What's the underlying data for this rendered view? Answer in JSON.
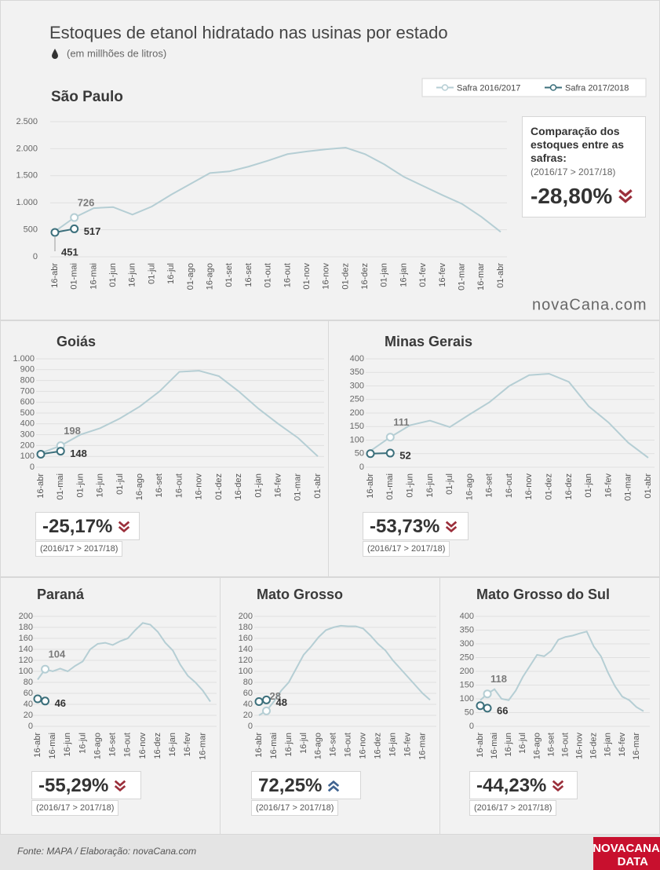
{
  "title": "Estoques de etanol hidratado nas usinas por estado",
  "subtitle": "(em millhões de litros)",
  "brand": "novaCana.com",
  "source": "Fonte: MAPA  / Elaboração: novaCana.com",
  "logo": {
    "top": "NOVACANA",
    "bottom": "DATA"
  },
  "chart_data": [
    {
      "type": "line",
      "title": "São Paulo",
      "legend": "upper right",
      "categories": [
        "16-abr",
        "01-mai",
        "16-mai",
        "01-jun",
        "16-jun",
        "01-jul",
        "16-jul",
        "01-ago",
        "16-ago",
        "01-set",
        "16-set",
        "01-out",
        "16-out",
        "01-nov",
        "16-nov",
        "01-dez",
        "16-dez",
        "01-jan",
        "16-jan",
        "01-fev",
        "16-fev",
        "01-mar",
        "16-mar",
        "01-abr"
      ],
      "series": [
        {
          "name": "Safra 2016/2017",
          "color": "#b5ced4",
          "labeled_points": [
            1
          ],
          "values": [
            470,
            726,
            900,
            920,
            780,
            930,
            1150,
            1350,
            1550,
            1580,
            1670,
            1780,
            1900,
            1950,
            1990,
            2020,
            1900,
            1710,
            1480,
            1310,
            1140,
            980,
            740,
            460
          ]
        },
        {
          "name": "Safra 2017/2018",
          "color": "#3b6f7b",
          "labeled_points": [
            0,
            1
          ],
          "values": [
            451,
            517,
            null,
            null,
            null,
            null,
            null,
            null,
            null,
            null,
            null,
            null,
            null,
            null,
            null,
            null,
            null,
            null,
            null,
            null,
            null,
            null,
            null,
            null
          ]
        }
      ],
      "ylim": [
        0,
        2500
      ],
      "yticks": [
        0,
        500,
        {
          "value": 1000,
          "label": "1.000"
        },
        {
          "value": 1500,
          "label": "1.500"
        },
        {
          "value": 2000,
          "label": "2.000"
        },
        {
          "value": 2500,
          "label": "2.500"
        }
      ],
      "grid": true,
      "change_title": "Comparação dos estoques entre as safras:",
      "change_note": "(2016/17 > 2017/18)",
      "change": {
        "value": -28.8,
        "label": "-28,80%"
      }
    },
    {
      "type": "line",
      "title": "Goiás",
      "categories": [
        "16-abr",
        "01-mai",
        "01-jun",
        "16-jun",
        "01-jul",
        "16-ago",
        "16-set",
        "16-out",
        "16-nov",
        "01-dez",
        "16-dez",
        "01-jan",
        "16-fev",
        "01-mar",
        "01-abr"
      ],
      "series": [
        {
          "color": "#b5ced4",
          "labeled_points": [
            1
          ],
          "values": [
            130,
            198,
            300,
            360,
            450,
            560,
            700,
            880,
            890,
            840,
            700,
            540,
            400,
            270,
            100
          ]
        },
        {
          "color": "#3b6f7b",
          "labeled_points": [
            0,
            1
          ],
          "values": [
            120,
            148,
            null,
            null,
            null,
            null,
            null,
            null,
            null,
            null,
            null,
            null,
            null,
            null,
            null
          ]
        }
      ],
      "ylim": [
        0,
        1000
      ],
      "yticks": [
        0,
        100,
        200,
        300,
        400,
        500,
        600,
        700,
        800,
        900,
        {
          "value": 1000,
          "label": "1.000"
        }
      ],
      "grid": true,
      "change_note": "(2016/17 > 2017/18)",
      "change": {
        "value": -25.17,
        "label": "-25,17%"
      }
    },
    {
      "type": "line",
      "title": "Minas Gerais",
      "categories": [
        "16-abr",
        "01-mai",
        "01-jun",
        "16-jun",
        "01-jul",
        "16-ago",
        "16-set",
        "16-out",
        "16-nov",
        "01-dez",
        "16-dez",
        "01-jan",
        "16-fev",
        "01-mar",
        "01-abr"
      ],
      "series": [
        {
          "color": "#b5ced4",
          "labeled_points": [
            1
          ],
          "values": [
            60,
            111,
            155,
            172,
            148,
            195,
            240,
            300,
            340,
            345,
            315,
            225,
            165,
            90,
            35
          ]
        },
        {
          "color": "#3b6f7b",
          "labeled_points": [
            0,
            1
          ],
          "values": [
            50,
            52,
            null,
            null,
            null,
            null,
            null,
            null,
            null,
            null,
            null,
            null,
            null,
            null,
            null
          ]
        }
      ],
      "ylim": [
        0,
        400
      ],
      "yticks": [
        0,
        50,
        100,
        150,
        200,
        250,
        300,
        350,
        400
      ],
      "grid": true,
      "change_note": "(2016/17 > 2017/18)",
      "change": {
        "value": -53.73,
        "label": "-53,73%"
      }
    },
    {
      "type": "line",
      "title": "Paraná",
      "categories": [
        "16-abr",
        null,
        "16-mai",
        null,
        "16-jun",
        null,
        "16-jul",
        null,
        "16-ago",
        null,
        "16-set",
        null,
        "16-out",
        null,
        "16-nov",
        null,
        "16-dez",
        null,
        "16-jan",
        null,
        "16-fev",
        null,
        "16-mar",
        null
      ],
      "series": [
        {
          "color": "#b5ced4",
          "labeled_points": [
            1
          ],
          "values": [
            85,
            104,
            100,
            105,
            100,
            110,
            118,
            140,
            150,
            152,
            148,
            155,
            160,
            175,
            188,
            185,
            172,
            152,
            138,
            112,
            92,
            80,
            65,
            45
          ]
        },
        {
          "color": "#3b6f7b",
          "labeled_points": [
            0,
            1
          ],
          "values": [
            50,
            46,
            null,
            null,
            null,
            null,
            null,
            null,
            null,
            null,
            null,
            null,
            null,
            null,
            null,
            null,
            null,
            null,
            null,
            null,
            null,
            null,
            null,
            null
          ]
        }
      ],
      "ylim": [
        0,
        200
      ],
      "yticks": [
        0,
        20,
        40,
        60,
        80,
        100,
        120,
        140,
        160,
        180,
        200
      ],
      "grid": true,
      "change_note": "(2016/17 > 2017/18)",
      "change": {
        "value": -55.29,
        "label": "-55,29%"
      }
    },
    {
      "type": "line",
      "title": "Mato Grosso",
      "categories": [
        "16-abr",
        null,
        "16-mai",
        null,
        "16-jun",
        null,
        "16-jul",
        null,
        "16-ago",
        null,
        "16-set",
        null,
        "16-out",
        null,
        "16-nov",
        null,
        "16-dez",
        null,
        "16-jan",
        null,
        "16-fev",
        null,
        "16-mar",
        null
      ],
      "series": [
        {
          "color": "#b5ced4",
          "labeled_points": [
            1
          ],
          "values": [
            20,
            28,
            45,
            65,
            80,
            105,
            130,
            145,
            162,
            175,
            180,
            183,
            182,
            182,
            178,
            165,
            150,
            138,
            120,
            105,
            90,
            75,
            60,
            48
          ]
        },
        {
          "color": "#3b6f7b",
          "labeled_points": [
            0,
            1
          ],
          "values": [
            45,
            48,
            null,
            null,
            null,
            null,
            null,
            null,
            null,
            null,
            null,
            null,
            null,
            null,
            null,
            null,
            null,
            null,
            null,
            null,
            null,
            null,
            null,
            null
          ]
        }
      ],
      "ylim": [
        0,
        200
      ],
      "yticks": [
        0,
        20,
        40,
        60,
        80,
        100,
        120,
        140,
        160,
        180,
        200
      ],
      "grid": true,
      "change_note": "(2016/17 > 2017/18)",
      "change": {
        "value": 72.25,
        "label": "72,25%"
      }
    },
    {
      "type": "line",
      "title": "Mato Grosso do Sul",
      "categories": [
        "16-abr",
        null,
        "16-mai",
        null,
        "16-jun",
        null,
        "16-jul",
        null,
        "16-ago",
        null,
        "16-set",
        null,
        "16-out",
        null,
        "16-nov",
        null,
        "16-dez",
        null,
        "16-jan",
        null,
        "16-fev",
        null,
        "16-mar",
        null
      ],
      "series": [
        {
          "color": "#b5ced4",
          "labeled_points": [
            1
          ],
          "values": [
            95,
            118,
            135,
            100,
            95,
            130,
            180,
            220,
            260,
            255,
            275,
            315,
            325,
            330,
            338,
            345,
            290,
            255,
            195,
            145,
            108,
            95,
            70,
            55
          ]
        },
        {
          "color": "#3b6f7b",
          "labeled_points": [
            0,
            1
          ],
          "values": [
            75,
            66,
            null,
            null,
            null,
            null,
            null,
            null,
            null,
            null,
            null,
            null,
            null,
            null,
            null,
            null,
            null,
            null,
            null,
            null,
            null,
            null,
            null,
            null
          ]
        }
      ],
      "ylim": [
        0,
        400
      ],
      "yticks": [
        0,
        50,
        100,
        150,
        200,
        250,
        300,
        350,
        400
      ],
      "grid": true,
      "change_note": "(2016/17 > 2017/18)",
      "change": {
        "value": -44.23,
        "label": "-44,23%"
      }
    }
  ]
}
